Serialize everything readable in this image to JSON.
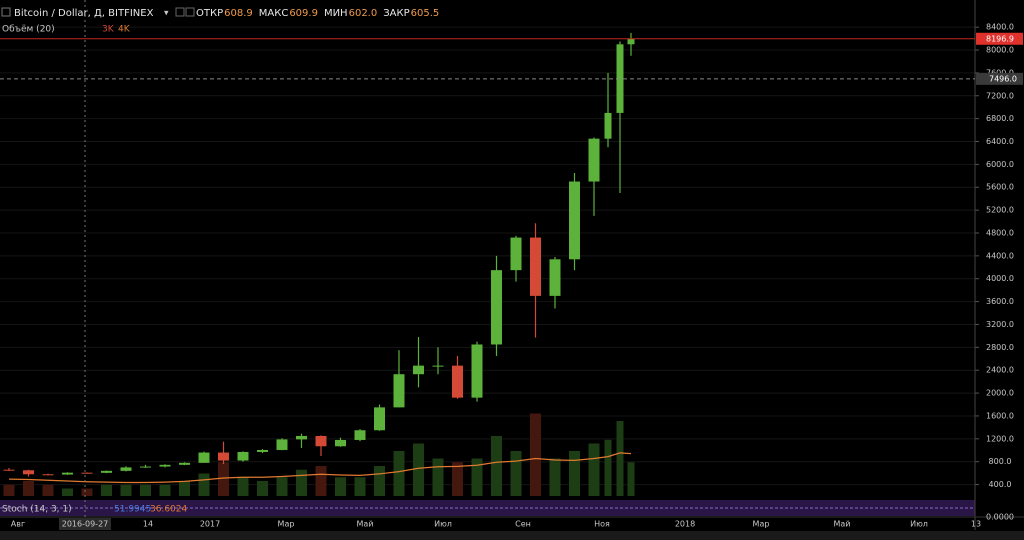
{
  "chart_data": {
    "type": "candlestick",
    "title": "Bitcoin / Dollar, Д, BITFINEX",
    "ohlc_legend": [
      {
        "label": "ОТКР",
        "value": "608.9"
      },
      {
        "label": "МАКС",
        "value": "609.9"
      },
      {
        "label": "МИН",
        "value": "602.0"
      },
      {
        "label": "ЗАКР",
        "value": "605.5"
      }
    ],
    "volume_legend": {
      "title": "Объём (20)",
      "values": [
        "3K",
        "4K"
      ]
    },
    "stoch_legend": {
      "title": "Stoch (14, 3, 1)",
      "values": [
        "51.9945",
        "36.6024"
      ],
      "axis_label": "0.0000"
    },
    "x_labels": [
      "Авг",
      "2016-09-27",
      "14",
      "2017",
      "Мар",
      "Май",
      "Июл",
      "Сен",
      "Ноя",
      "2018",
      "Мар",
      "Май",
      "Июл",
      "13"
    ],
    "crosshair": {
      "date": "2016-09-27",
      "price": {
        "value": 7496,
        "label": "7496.0"
      }
    },
    "last_price": {
      "value": 8196.9,
      "label": "8196.9"
    },
    "up_color": "#5cb23a",
    "down_color": "#d44a36",
    "volume_ma_color": "#e07a30",
    "open": [
      660,
      650,
      580,
      575,
      608,
      605,
      640,
      700,
      715,
      745,
      780,
      960,
      820,
      970,
      1005,
      1190,
      1250,
      1070,
      1180,
      1350,
      1750,
      2330,
      2480,
      2480,
      1920,
      2850,
      4150,
      4720,
      3700,
      4340,
      5700,
      6450,
      6900,
      8100
    ],
    "high": [
      690,
      660,
      590,
      615,
      612,
      645,
      720,
      745,
      755,
      790,
      975,
      1150,
      980,
      1020,
      1210,
      1290,
      1260,
      1220,
      1370,
      1800,
      2750,
      2980,
      2800,
      2650,
      2900,
      4400,
      4750,
      4970,
      4380,
      5850,
      6470,
      7600,
      8150,
      8300
    ],
    "low": [
      640,
      540,
      560,
      570,
      590,
      600,
      630,
      690,
      700,
      740,
      780,
      760,
      800,
      950,
      1000,
      1040,
      900,
      1060,
      1160,
      1340,
      1750,
      2100,
      2330,
      1900,
      1850,
      2650,
      3950,
      2970,
      3480,
      4150,
      5100,
      6300,
      5500,
      7900
    ],
    "close": [
      650,
      580,
      575,
      608,
      605,
      640,
      700,
      715,
      745,
      780,
      960,
      820,
      970,
      1005,
      1190,
      1250,
      1070,
      1180,
      1350,
      1750,
      2330,
      2480,
      2480,
      1920,
      2850,
      4150,
      4720,
      3700,
      4340,
      5700,
      6450,
      6900,
      8100,
      8196.9
    ],
    "volume": [
      3,
      4,
      3,
      2,
      2,
      3,
      3,
      3,
      3,
      4,
      6,
      9,
      5,
      4,
      5,
      7,
      8,
      5,
      5,
      8,
      12,
      14,
      10,
      9,
      10,
      16,
      12,
      22,
      10,
      12,
      14,
      15,
      20,
      9
    ],
    "volume_ma": [
      4.5,
      4.4,
      4.2,
      4.0,
      3.8,
      3.7,
      3.6,
      3.6,
      3.7,
      3.9,
      4.3,
      4.8,
      5.0,
      5.0,
      5.2,
      5.5,
      5.8,
      5.6,
      5.5,
      5.9,
      6.5,
      7.4,
      7.8,
      7.9,
      8.2,
      9.0,
      9.3,
      10.0,
      9.6,
      9.5,
      10.0,
      10.5,
      11.5,
      11.3
    ],
    "vlim": [
      0,
      40
    ],
    "ylim": [
      200,
      8700
    ],
    "yticks": [
      {
        "value": 400,
        "label": "400.0"
      },
      {
        "value": 800,
        "label": "800.0"
      },
      {
        "value": 1200,
        "label": "1200.0"
      },
      {
        "value": 1600,
        "label": "1600.0"
      },
      {
        "value": 2000,
        "label": "2000.0"
      },
      {
        "value": 2400,
        "label": "2400.0"
      },
      {
        "value": 2800,
        "label": "2800.0"
      },
      {
        "value": 3200,
        "label": "3200.0"
      },
      {
        "value": 3600,
        "label": "3600.0"
      },
      {
        "value": 4000,
        "label": "4000.0"
      },
      {
        "value": 4400,
        "label": "4400.0"
      },
      {
        "value": 4800,
        "label": "4800.0"
      },
      {
        "value": 5200,
        "label": "5200.0"
      },
      {
        "value": 5600,
        "label": "5600.0"
      },
      {
        "value": 6000,
        "label": "6000.0"
      },
      {
        "value": 6400,
        "label": "6400.0"
      },
      {
        "value": 6800,
        "label": "6800.0"
      },
      {
        "value": 7200,
        "label": "7200.0"
      },
      {
        "value": 7600,
        "label": "7600.0"
      },
      {
        "value": 8000,
        "label": "8000.0"
      },
      {
        "value": 8400,
        "label": "8400.0"
      }
    ]
  }
}
